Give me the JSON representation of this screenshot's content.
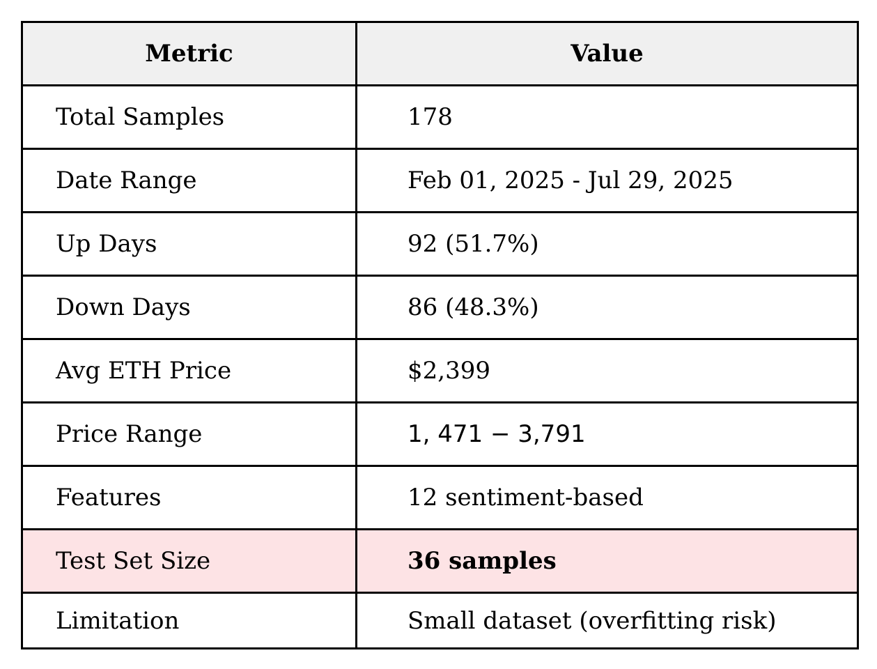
{
  "chart_data": {
    "type": "table",
    "columns": [
      "Metric",
      "Value"
    ],
    "rows": [
      {
        "metric": "Total Samples",
        "value": "178"
      },
      {
        "metric": "Date Range",
        "value": "Feb 01, 2025 - Jul 29, 2025"
      },
      {
        "metric": "Up Days",
        "value": "92 (51.7%)"
      },
      {
        "metric": "Down Days",
        "value": "86 (48.3%)"
      },
      {
        "metric": "Avg ETH Price",
        "value": "$2,399"
      },
      {
        "metric": "Price Range",
        "value": "1, 471 − 3,791"
      },
      {
        "metric": "Features",
        "value": "12 sentiment-based"
      },
      {
        "metric": "Test Set Size",
        "value": "36 samples"
      },
      {
        "metric": "Limitation",
        "value": "Small dataset (overfitting risk)"
      }
    ],
    "highlight_row_index": 7,
    "colors": {
      "header_bg": "#f0f0f0",
      "highlight_bg": "#fde3e5",
      "border": "#000000"
    }
  }
}
